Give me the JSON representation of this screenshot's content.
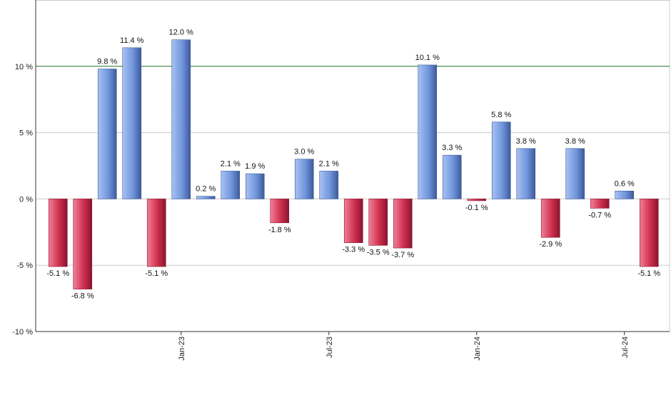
{
  "chart_data": {
    "type": "bar",
    "title": "",
    "xlabel": "",
    "ylabel": "",
    "ylim": [
      -10,
      15
    ],
    "yticks": [
      {
        "value": 10,
        "label": "10 %"
      },
      {
        "value": 5,
        "label": "5 %"
      },
      {
        "value": 0,
        "label": "0 %"
      },
      {
        "value": -5,
        "label": "-5 %"
      },
      {
        "value": -10,
        "label": "-10 %"
      }
    ],
    "reference_line": {
      "value": 10,
      "color": "#2e7d32"
    },
    "xticks": [
      {
        "index": 5.5,
        "label": "Jan-23"
      },
      {
        "index": 11.5,
        "label": "Jul-23"
      },
      {
        "index": 17.5,
        "label": "Jan-24"
      },
      {
        "index": 23.5,
        "label": "Jul-24"
      }
    ],
    "values": [
      -5.1,
      -6.8,
      9.8,
      11.4,
      -5.1,
      12.0,
      0.2,
      2.1,
      1.9,
      -1.8,
      3.0,
      2.1,
      -3.3,
      -3.5,
      -3.7,
      10.1,
      3.3,
      -0.1,
      5.8,
      3.8,
      -2.9,
      3.8,
      -0.7,
      0.6,
      -5.1
    ],
    "labels": [
      "-5.1 %",
      "-6.8 %",
      "9.8 %",
      "11.4 %",
      "-5.1 %",
      "12.0 %",
      "0.2 %",
      "2.1 %",
      "1.9 %",
      "-1.8 %",
      "3.0 %",
      "2.1 %",
      "-3.3 %",
      "-3.5 %",
      "-3.7 %",
      "10.1 %",
      "3.3 %",
      "-0.1 %",
      "5.8 %",
      "3.8 %",
      "-2.9 %",
      "3.8 %",
      "-0.7 %",
      "0.6 %",
      "-5.1 %"
    ],
    "colors": {
      "positive": "#6f93d8",
      "negative": "#c8284a",
      "grid": "#cccccc",
      "axis": "#333333"
    },
    "grid": true
  }
}
